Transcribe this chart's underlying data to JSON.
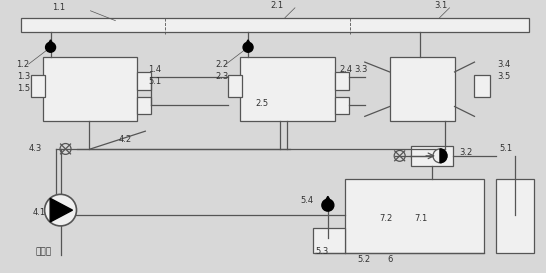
{
  "bg_color": "#d8d8d8",
  "line_color": "#555555",
  "lw": 0.9
}
